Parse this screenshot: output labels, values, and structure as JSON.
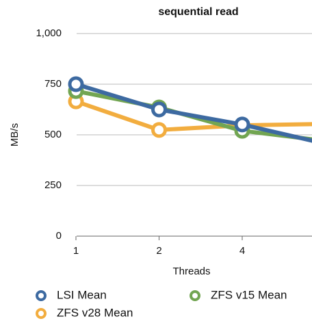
{
  "chart_data": {
    "type": "line",
    "title": "sequential read",
    "x_label": "Threads",
    "y_label": "MB/s",
    "categories": [
      "1",
      "2",
      "4",
      null
    ],
    "series": [
      {
        "name": "LSI Mean",
        "color": "#3d6aa1",
        "values": [
          750,
          625,
          551,
          456
        ]
      },
      {
        "name": "ZFS v15 Mean",
        "color": "#72a552",
        "values": [
          716,
          635,
          520,
          470
        ]
      },
      {
        "name": "ZFS v28 Mean",
        "color": "#f2ad3f",
        "values": [
          665,
          524,
          547,
          554
        ]
      }
    ],
    "ylim": [
      0,
      1000
    ],
    "yticks": [
      0,
      250,
      500,
      750,
      {
        "value": 1000,
        "label": "1,000"
      }
    ],
    "grid": true,
    "legend": "bottom"
  }
}
